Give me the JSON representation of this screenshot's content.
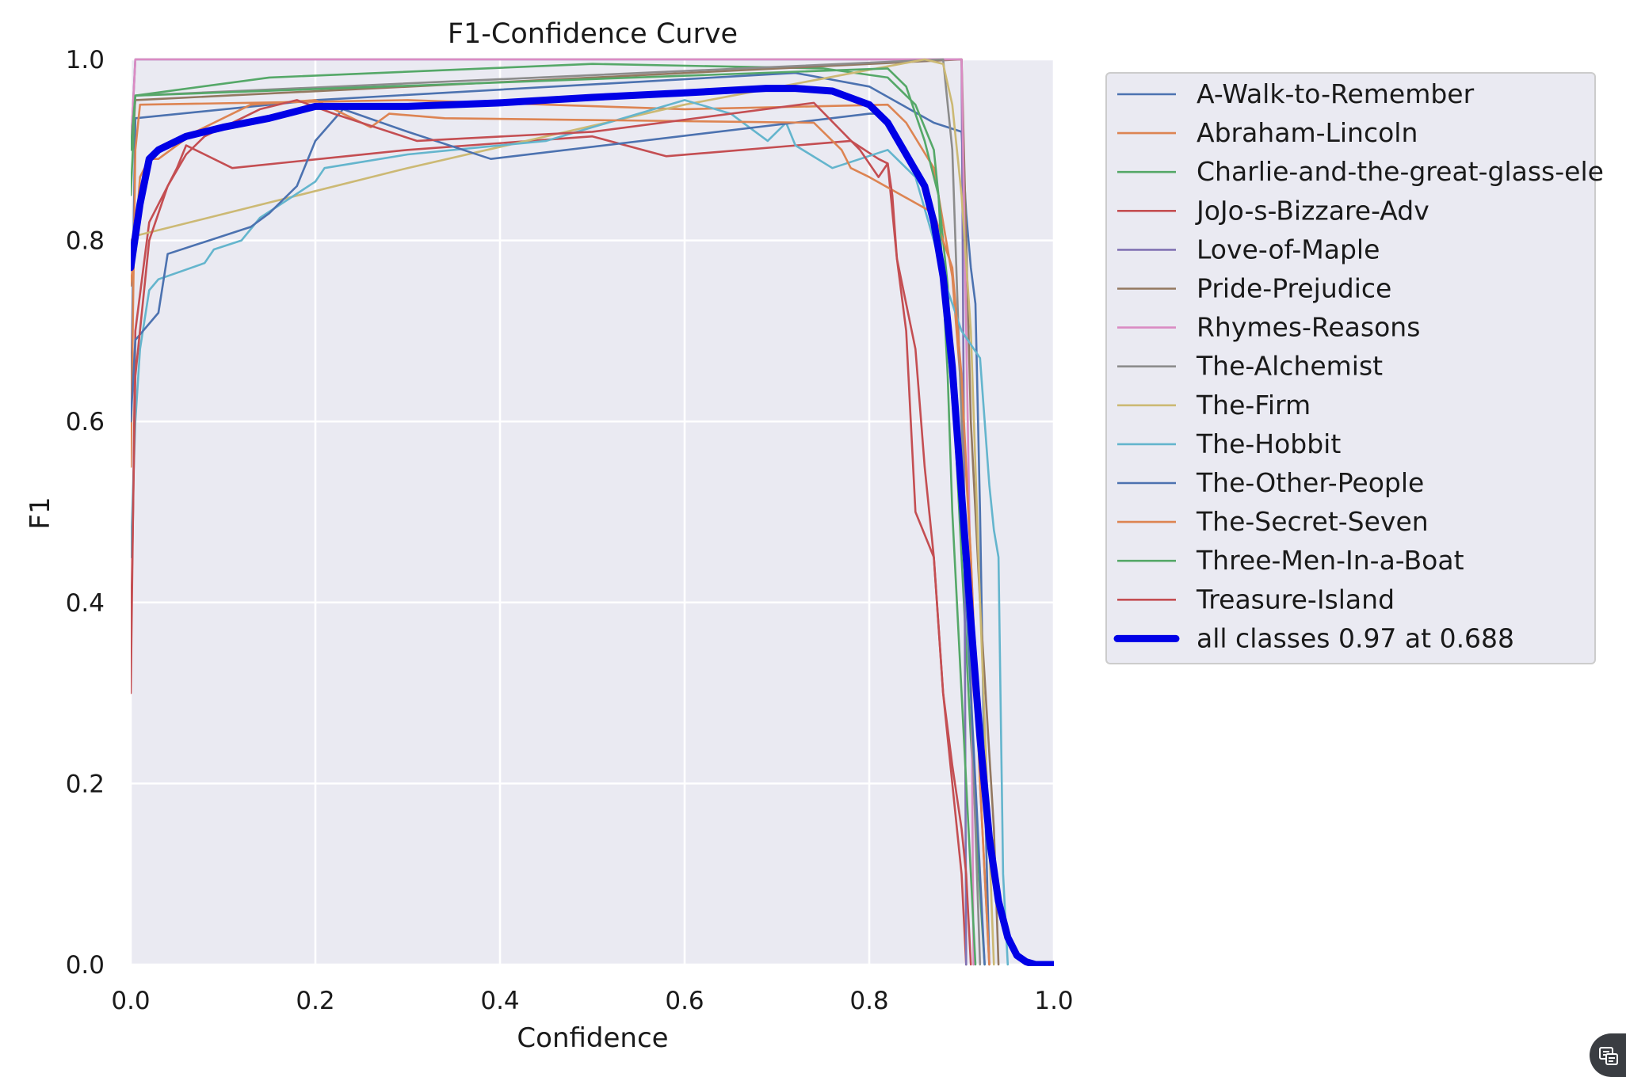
{
  "chart_data": {
    "type": "line",
    "title": "F1-Confidence Curve",
    "xlabel": "Confidence",
    "ylabel": "F1",
    "xlim": [
      0,
      1
    ],
    "ylim": [
      0,
      1
    ],
    "xticks": [
      "0.0",
      "0.2",
      "0.4",
      "0.6",
      "0.8",
      "1.0"
    ],
    "yticks": [
      "0.0",
      "0.2",
      "0.4",
      "0.6",
      "0.8",
      "1.0"
    ],
    "grid": true,
    "legend_position": "outside-right",
    "series": [
      {
        "name": "A-Walk-to-Remember",
        "color": "#4c72b0",
        "x": [
          0,
          0.005,
          0.2,
          0.72,
          0.8,
          0.87,
          0.9,
          0.905,
          0.91,
          0.915,
          0.92,
          0.925,
          0.93
        ],
        "y": [
          0.6,
          0.935,
          0.955,
          0.985,
          0.97,
          0.93,
          0.92,
          0.83,
          0.77,
          0.73,
          0.5,
          0.2,
          0
        ]
      },
      {
        "name": "Abraham-Lincoln",
        "color": "#dd8452",
        "x": [
          0,
          0.005,
          0.01,
          0.3,
          0.6,
          0.82,
          0.84,
          0.87,
          0.89,
          0.9,
          0.91,
          0.92,
          0.93
        ],
        "y": [
          0.55,
          0.9,
          0.95,
          0.955,
          0.945,
          0.95,
          0.93,
          0.88,
          0.76,
          0.63,
          0.45,
          0.2,
          0
        ]
      },
      {
        "name": "Charlie-and-the-great-glass-ele",
        "color": "#55a868",
        "x": [
          0,
          0.005,
          0.15,
          0.5,
          0.75,
          0.82,
          0.85,
          0.87,
          0.885,
          0.9,
          0.91,
          0.92,
          0.925
        ],
        "y": [
          0.85,
          0.96,
          0.98,
          0.995,
          0.99,
          0.98,
          0.95,
          0.9,
          0.75,
          0.45,
          0.25,
          0.08,
          0
        ]
      },
      {
        "name": "JoJo-s-Bizzare-Adv",
        "color": "#c44e52",
        "x": [
          0,
          0.005,
          0.02,
          0.05,
          0.06,
          0.07,
          0.11,
          0.3,
          0.5,
          0.58,
          0.78,
          0.81,
          0.82,
          0.83,
          0.85,
          0.86,
          0.87,
          0.88,
          0.89,
          0.9,
          0.905
        ],
        "y": [
          0.3,
          0.7,
          0.82,
          0.88,
          0.905,
          0.9,
          0.88,
          0.9,
          0.915,
          0.893,
          0.91,
          0.89,
          0.885,
          0.78,
          0.68,
          0.55,
          0.45,
          0.3,
          0.2,
          0.1,
          0
        ]
      },
      {
        "name": "Love-of-Maple",
        "color": "#8172b3",
        "x": [
          0,
          0.005,
          0.9,
          0.903,
          0.905
        ],
        "y": [
          0.9,
          1,
          1,
          0.5,
          0
        ]
      },
      {
        "name": "Pride-Prejudice",
        "color": "#937860",
        "x": [
          0,
          0.005,
          0.9,
          0.91,
          0.92,
          0.935,
          0.94
        ],
        "y": [
          0.9,
          0.955,
          1,
          0.6,
          0.4,
          0.15,
          0
        ]
      },
      {
        "name": "Rhymes-Reasons",
        "color": "#da8bc3",
        "x": [
          0,
          0.005,
          0.9,
          0.91,
          0.913
        ],
        "y": [
          0.9,
          1,
          1,
          0.4,
          0
        ]
      },
      {
        "name": "The-Alchemist",
        "color": "#8c8c8c",
        "x": [
          0,
          0.005,
          0.88,
          0.89,
          0.9,
          0.91,
          0.92
        ],
        "y": [
          0.9,
          0.96,
          1,
          0.9,
          0.6,
          0.3,
          0
        ]
      },
      {
        "name": "The-Firm",
        "color": "#ccb974",
        "x": [
          0,
          0.005,
          0.3,
          0.6,
          0.86,
          0.88,
          0.89,
          0.9,
          0.91,
          0.92,
          0.935
        ],
        "y": [
          0.8,
          0.805,
          0.88,
          0.95,
          1,
          0.995,
          0.95,
          0.85,
          0.7,
          0.4,
          0
        ]
      },
      {
        "name": "The-Hobbit",
        "color": "#64b5cd",
        "x": [
          0,
          0.005,
          0.01,
          0.02,
          0.03,
          0.08,
          0.09,
          0.12,
          0.14,
          0.2,
          0.21,
          0.3,
          0.45,
          0.6,
          0.65,
          0.69,
          0.71,
          0.72,
          0.76,
          0.82,
          0.85,
          0.87,
          0.88,
          0.9,
          0.92,
          0.93,
          0.935,
          0.94,
          0.945,
          0.95
        ],
        "y": [
          0.45,
          0.6,
          0.68,
          0.745,
          0.757,
          0.775,
          0.79,
          0.8,
          0.825,
          0.865,
          0.88,
          0.895,
          0.91,
          0.955,
          0.94,
          0.91,
          0.93,
          0.905,
          0.88,
          0.9,
          0.87,
          0.8,
          0.76,
          0.7,
          0.67,
          0.53,
          0.48,
          0.45,
          0.1,
          0
        ]
      },
      {
        "name": "The-Other-People",
        "color": "#4c72b0",
        "x": [
          0,
          0.005,
          0.03,
          0.04,
          0.13,
          0.15,
          0.18,
          0.2,
          0.23,
          0.3,
          0.39,
          0.8,
          0.81,
          0.82,
          0.85,
          0.87,
          0.88,
          0.9,
          0.91,
          0.925
        ],
        "y": [
          0.6,
          0.69,
          0.72,
          0.785,
          0.815,
          0.83,
          0.86,
          0.91,
          0.945,
          0.92,
          0.89,
          0.94,
          0.94,
          0.93,
          0.88,
          0.83,
          0.75,
          0.5,
          0.3,
          0
        ]
      },
      {
        "name": "The-Secret-Seven",
        "color": "#dd8452",
        "x": [
          0,
          0.005,
          0.01,
          0.02,
          0.03,
          0.07,
          0.13,
          0.2,
          0.26,
          0.28,
          0.34,
          0.74,
          0.77,
          0.78,
          0.8,
          0.87,
          0.89,
          0.9,
          0.91,
          0.92,
          0.93
        ],
        "y": [
          0.75,
          0.8,
          0.87,
          0.89,
          0.89,
          0.92,
          0.95,
          0.955,
          0.925,
          0.94,
          0.935,
          0.93,
          0.9,
          0.88,
          0.87,
          0.83,
          0.77,
          0.65,
          0.45,
          0.2,
          0
        ]
      },
      {
        "name": "Three-Men-In-a-Boat",
        "color": "#55a868",
        "x": [
          0,
          0.005,
          0.82,
          0.84,
          0.86,
          0.875,
          0.885,
          0.89,
          0.9,
          0.91,
          0.915
        ],
        "y": [
          0.9,
          0.96,
          0.99,
          0.97,
          0.91,
          0.85,
          0.65,
          0.5,
          0.3,
          0.1,
          0
        ]
      },
      {
        "name": "Treasure-Island",
        "color": "#c44e52",
        "x": [
          0,
          0.005,
          0.02,
          0.04,
          0.06,
          0.08,
          0.14,
          0.18,
          0.22,
          0.31,
          0.5,
          0.74,
          0.79,
          0.81,
          0.82,
          0.825,
          0.83,
          0.84,
          0.845,
          0.85,
          0.87,
          0.88,
          0.89,
          0.9,
          0.905,
          0.91
        ],
        "y": [
          0.35,
          0.65,
          0.8,
          0.86,
          0.895,
          0.915,
          0.945,
          0.955,
          0.94,
          0.91,
          0.92,
          0.952,
          0.9,
          0.87,
          0.885,
          0.85,
          0.78,
          0.7,
          0.6,
          0.5,
          0.45,
          0.3,
          0.22,
          0.15,
          0.1,
          0
        ]
      },
      {
        "name": "all classes 0.97 at 0.688",
        "color": "#0000e6",
        "bold": true,
        "x": [
          0,
          0.01,
          0.02,
          0.03,
          0.04,
          0.06,
          0.1,
          0.15,
          0.2,
          0.3,
          0.4,
          0.5,
          0.6,
          0.688,
          0.72,
          0.76,
          0.8,
          0.82,
          0.84,
          0.86,
          0.87,
          0.88,
          0.89,
          0.9,
          0.91,
          0.92,
          0.93,
          0.94,
          0.95,
          0.96,
          0.97,
          0.98,
          1.0
        ],
        "y": [
          0.77,
          0.84,
          0.89,
          0.9,
          0.905,
          0.915,
          0.925,
          0.935,
          0.948,
          0.948,
          0.952,
          0.958,
          0.963,
          0.968,
          0.968,
          0.965,
          0.95,
          0.93,
          0.895,
          0.86,
          0.82,
          0.76,
          0.66,
          0.52,
          0.38,
          0.25,
          0.14,
          0.07,
          0.03,
          0.01,
          0.003,
          0,
          0
        ]
      }
    ]
  },
  "ui": {
    "corner_button_icon": "translate-icon"
  }
}
